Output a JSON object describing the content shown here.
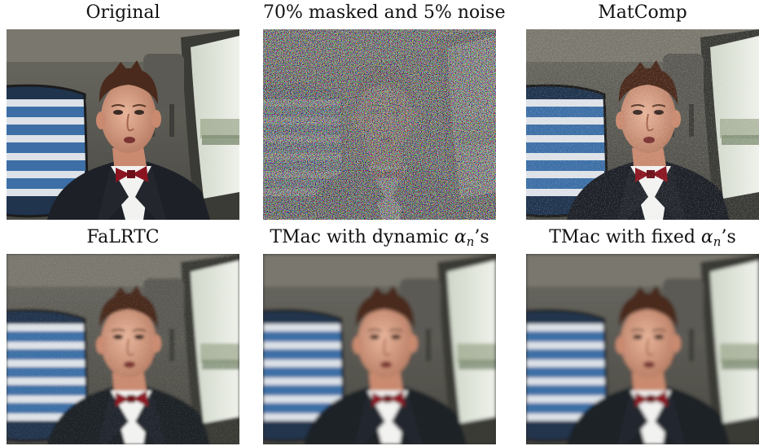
{
  "figure": {
    "panels": [
      {
        "caption": "Original",
        "variant": "original"
      },
      {
        "caption": "70% masked and 5% noise",
        "variant": "masked"
      },
      {
        "caption": "MatComp",
        "variant": "matcomp"
      },
      {
        "caption": "FaLRTC",
        "variant": "falrtc"
      },
      {
        "caption_prefix": "TMac with dynamic ",
        "caption_symbol": "α",
        "caption_subscript": "n",
        "caption_suffix": "’s",
        "variant": "dynamic"
      },
      {
        "caption_prefix": "TMac with fixed ",
        "caption_symbol": "α",
        "caption_subscript": "n",
        "caption_suffix": "’s",
        "variant": "fixed"
      }
    ]
  }
}
